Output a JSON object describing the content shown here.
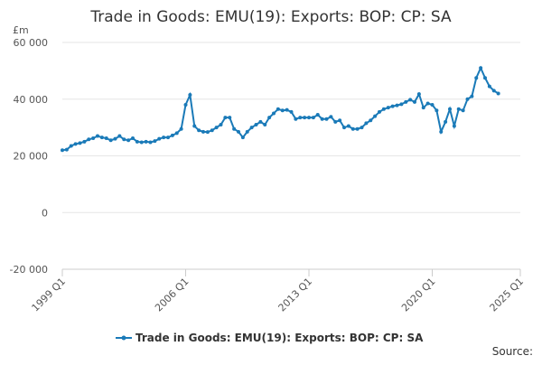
{
  "chart_data": {
    "type": "line",
    "title": "Trade in Goods: EMU(19): Exports: BOP: CP: SA",
    "y_label": "£m",
    "source": "Source:",
    "x": [
      1999,
      1999.25,
      1999.5,
      1999.75,
      2000,
      2000.25,
      2000.5,
      2000.75,
      2001,
      2001.25,
      2001.5,
      2001.75,
      2002,
      2002.25,
      2002.5,
      2002.75,
      2003,
      2003.25,
      2003.5,
      2003.75,
      2004,
      2004.25,
      2004.5,
      2004.75,
      2005,
      2005.25,
      2005.5,
      2005.75,
      2006,
      2006.25,
      2006.5,
      2006.75,
      2007,
      2007.25,
      2007.5,
      2007.75,
      2008,
      2008.25,
      2008.5,
      2008.75,
      2009,
      2009.25,
      2009.5,
      2009.75,
      2010,
      2010.25,
      2010.5,
      2010.75,
      2011,
      2011.25,
      2011.5,
      2011.75,
      2012,
      2012.25,
      2012.5,
      2012.75,
      2013,
      2013.25,
      2013.5,
      2013.75,
      2014,
      2014.25,
      2014.5,
      2014.75,
      2015,
      2015.25,
      2015.5,
      2015.75,
      2016,
      2016.25,
      2016.5,
      2016.75,
      2017,
      2017.25,
      2017.5,
      2017.75,
      2018,
      2018.25,
      2018.5,
      2018.75,
      2019,
      2019.25,
      2019.5,
      2019.75,
      2020,
      2020.25,
      2020.5,
      2020.75,
      2021,
      2021.25,
      2021.5,
      2021.75,
      2022,
      2022.25,
      2022.5,
      2022.75,
      2023,
      2023.25,
      2023.5,
      2023.75
    ],
    "series": [
      {
        "name": "Trade in Goods: EMU(19): Exports: BOP: CP: SA",
        "color": "#1a7ab8",
        "values": [
          22000,
          22200,
          23500,
          24200,
          24500,
          25000,
          25800,
          26200,
          27000,
          26500,
          26200,
          25500,
          26000,
          27000,
          25800,
          25500,
          26200,
          25000,
          24800,
          25000,
          24800,
          25200,
          26000,
          26500,
          26500,
          27200,
          28000,
          29500,
          38000,
          41500,
          30500,
          29000,
          28500,
          28400,
          29000,
          30000,
          31000,
          33500,
          33500,
          29500,
          28500,
          26500,
          28500,
          30000,
          31000,
          32000,
          31000,
          33500,
          35000,
          36500,
          36000,
          36200,
          35500,
          33000,
          33500,
          33500,
          33500,
          33500,
          34500,
          33000,
          33000,
          33800,
          32000,
          32500,
          30000,
          30500,
          29500,
          29500,
          30000,
          31500,
          32500,
          34000,
          35500,
          36500,
          37000,
          37500,
          37800,
          38200,
          39000,
          39800,
          39000,
          41800,
          37000,
          38500,
          38000,
          36000,
          28500,
          32000,
          36500,
          30500,
          36500,
          36000,
          40000,
          41000,
          47500,
          51000,
          47500,
          44500,
          43000,
          42000
        ]
      }
    ],
    "xlim": [
      1999,
      2025
    ],
    "xticks": [
      {
        "value": 1999,
        "label": "1999 Q1"
      },
      {
        "value": 2006,
        "label": "2006 Q1"
      },
      {
        "value": 2013,
        "label": "2013 Q1"
      },
      {
        "value": 2020,
        "label": "2020 Q1"
      },
      {
        "value": 2025,
        "label": "2025 Q1"
      }
    ],
    "ylim": [
      -20000,
      60000
    ],
    "yticks": [
      {
        "value": -20000,
        "label": "-20 000"
      },
      {
        "value": 0,
        "label": "0"
      },
      {
        "value": 20000,
        "label": "20 000"
      },
      {
        "value": 40000,
        "label": "40 000"
      },
      {
        "value": 60000,
        "label": "60 000"
      }
    ],
    "grid": true
  }
}
